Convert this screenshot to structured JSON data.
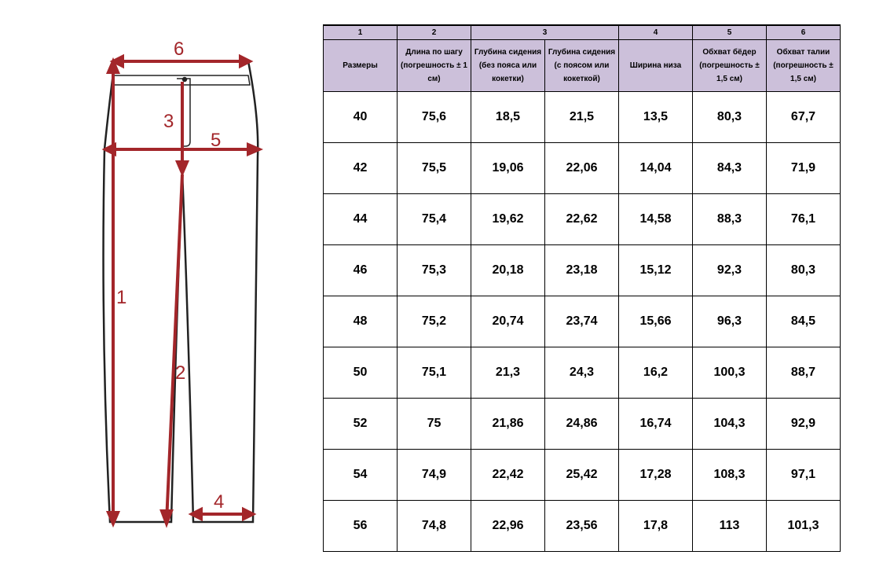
{
  "diagram": {
    "labels": [
      "1",
      "2",
      "3",
      "4",
      "5",
      "6"
    ]
  },
  "table": {
    "numbers": [
      "1",
      "2",
      "3",
      "4",
      "5",
      "6"
    ],
    "headers": [
      "Размеры",
      "Длина по шагу (погрешность ± 1 см)",
      "Глубина сидения (без пояса или кокетки)",
      "Глубина сидения   (с поясом или кокеткой)",
      "Ширина низа",
      "Обхват бёдер (погрешность ± 1,5 см)",
      "Обхват талии (погрешность ± 1,5 см)"
    ],
    "rows": [
      [
        "40",
        "75,6",
        "18,5",
        "21,5",
        "13,5",
        "80,3",
        "67,7"
      ],
      [
        "42",
        "75,5",
        "19,06",
        "22,06",
        "14,04",
        "84,3",
        "71,9"
      ],
      [
        "44",
        "75,4",
        "19,62",
        "22,62",
        "14,58",
        "88,3",
        "76,1"
      ],
      [
        "46",
        "75,3",
        "20,18",
        "23,18",
        "15,12",
        "92,3",
        "80,3"
      ],
      [
        "48",
        "75,2",
        "20,74",
        "23,74",
        "15,66",
        "96,3",
        "84,5"
      ],
      [
        "50",
        "75,1",
        "21,3",
        "24,3",
        "16,2",
        "100,3",
        "88,7"
      ],
      [
        "52",
        "75",
        "21,86",
        "24,86",
        "16,74",
        "104,3",
        "92,9"
      ],
      [
        "54",
        "74,9",
        "22,42",
        "25,42",
        "17,28",
        "108,3",
        "97,1"
      ],
      [
        "56",
        "74,8",
        "22,96",
        "23,56",
        "17,8",
        "113",
        "101,3"
      ]
    ]
  },
  "colors": {
    "header_bg": "#ccc0da",
    "measure_lines": "#a3262a"
  }
}
